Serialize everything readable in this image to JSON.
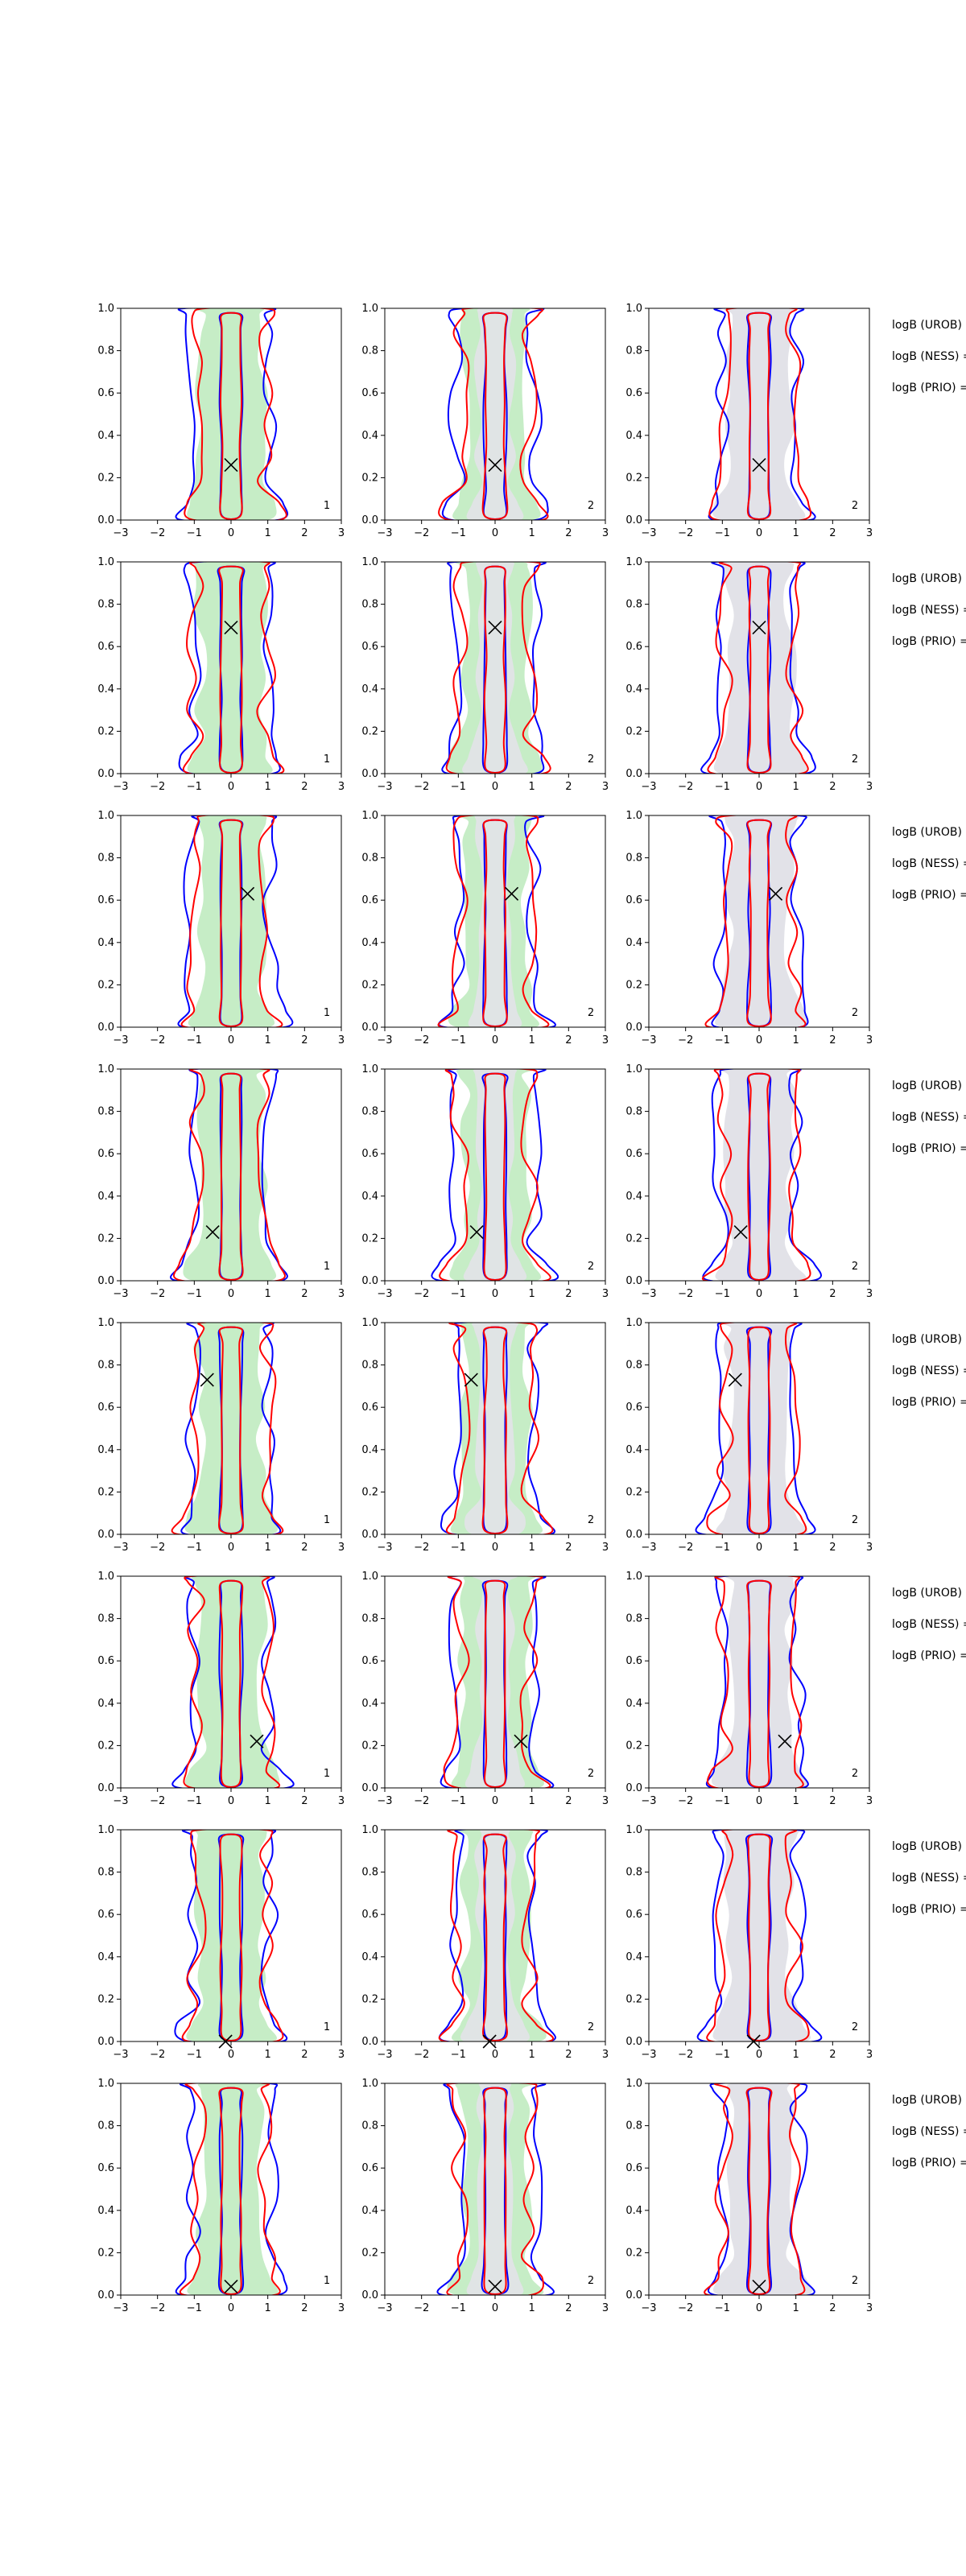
{
  "figure": {
    "x_ticks": [
      "−3",
      "−2",
      "−1",
      "0",
      "1",
      "2",
      "3"
    ],
    "y_ticks": [
      "0.0",
      "0.2",
      "0.4",
      "0.6",
      "0.8",
      "1.0"
    ],
    "colors": {
      "series_1": "#0000ff",
      "series_2": "#ff0000",
      "fill_green": "#c6edc6",
      "fill_grey": "#e2e2e8",
      "marker": "#000000",
      "axes": "#000000"
    },
    "side_labels": [
      "logB (UROB) =",
      "logB (NESS) =",
      "logB (PRIO) ="
    ],
    "column_tags": [
      "1",
      "2",
      "2"
    ]
  },
  "chart_data": {
    "type": "contour",
    "layout": "8 rows x 3 columns of 2D density contour panels",
    "x_axis": {
      "lim": [
        -3,
        3
      ],
      "ticks": [
        -3,
        -2,
        -1,
        0,
        1,
        2,
        3
      ]
    },
    "y_axis": {
      "lim": [
        0,
        1
      ],
      "ticks": [
        0.0,
        0.2,
        0.4,
        0.6,
        0.8,
        1.0
      ]
    },
    "series_colors": [
      "blue",
      "red"
    ],
    "shading": [
      "green",
      "grey"
    ],
    "rows": [
      {
        "marker": {
          "x": 0.0,
          "y": 0.26
        }
      },
      {
        "marker": {
          "x": 0.0,
          "y": 0.69
        }
      },
      {
        "marker": {
          "x": 0.45,
          "y": 0.63
        }
      },
      {
        "marker": {
          "x": -0.5,
          "y": 0.23
        }
      },
      {
        "marker": {
          "x": -0.65,
          "y": 0.73
        }
      },
      {
        "marker": {
          "x": 0.7,
          "y": 0.22
        }
      },
      {
        "marker": {
          "x": -0.15,
          "y": 0.0
        }
      },
      {
        "marker": {
          "x": 0.0,
          "y": 0.04
        }
      }
    ]
  }
}
